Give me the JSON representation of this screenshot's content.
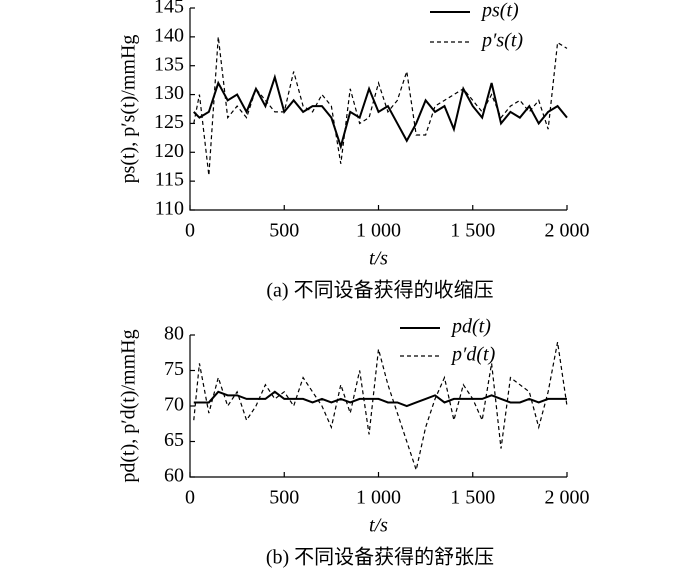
{
  "chart_data": [
    {
      "type": "line",
      "caption": "(a) 不同设备获得的收缩压",
      "xlabel": "t/s",
      "ylabel": "ps(t), p′s(t)/mmHg",
      "x": [
        20,
        50,
        100,
        150,
        200,
        250,
        300,
        350,
        400,
        450,
        500,
        550,
        600,
        650,
        700,
        750,
        800,
        850,
        900,
        950,
        1000,
        1050,
        1100,
        1150,
        1200,
        1250,
        1300,
        1350,
        1400,
        1450,
        1500,
        1550,
        1600,
        1650,
        1700,
        1750,
        1800,
        1850,
        1900,
        1950,
        2000
      ],
      "series": [
        {
          "name": "ps(t)",
          "color": "#000000",
          "style": "solid",
          "values": [
            127,
            126,
            127,
            132,
            129,
            130,
            127,
            131,
            128,
            133,
            127,
            129,
            127,
            128,
            128,
            126,
            121,
            127,
            126,
            131,
            127,
            128,
            125,
            122,
            125,
            129,
            127,
            128,
            124,
            131,
            128,
            126,
            132,
            125,
            127,
            126,
            128,
            125,
            127,
            128,
            126
          ]
        },
        {
          "name": "p′s(t)",
          "color": "#000000",
          "style": "dashed",
          "values": [
            125,
            130,
            116,
            140,
            126,
            128,
            126,
            131,
            129,
            127,
            127,
            134,
            128,
            127,
            130,
            128,
            118,
            131,
            125,
            126,
            132,
            127,
            129,
            134,
            123,
            123,
            128,
            129,
            130,
            131,
            129,
            127,
            130,
            126,
            128,
            129,
            127,
            129,
            124,
            139,
            138
          ]
        }
      ],
      "xlim": [
        0,
        2000
      ],
      "xticks": [
        0,
        500,
        {
          "value": 1000,
          "label": "1 000"
        },
        {
          "value": 1500,
          "label": "1 500"
        },
        {
          "value": 2000,
          "label": "2 000"
        }
      ],
      "ylim": [
        110,
        145
      ],
      "yticks": [
        110,
        115,
        120,
        125,
        130,
        135,
        140,
        145
      ],
      "legend": "upper right"
    },
    {
      "type": "line",
      "caption": "(b) 不同设备获得的舒张压",
      "xlabel": "t/s",
      "ylabel": "pd(t), p′d(t)/mmHg",
      "x": [
        20,
        50,
        100,
        150,
        200,
        250,
        300,
        350,
        400,
        450,
        500,
        550,
        600,
        650,
        700,
        750,
        800,
        850,
        900,
        950,
        1000,
        1050,
        1100,
        1150,
        1200,
        1250,
        1300,
        1350,
        1400,
        1450,
        1500,
        1550,
        1600,
        1650,
        1700,
        1750,
        1800,
        1850,
        1900,
        1950,
        2000
      ],
      "series": [
        {
          "name": "pd(t)",
          "color": "#000000",
          "style": "solid",
          "values": [
            70.5,
            70.5,
            70.5,
            72,
            71.5,
            71.5,
            71,
            71,
            71,
            72,
            71,
            71,
            71,
            70.5,
            71,
            70.5,
            71,
            70.5,
            71,
            71,
            71,
            70.5,
            70.5,
            70,
            70.5,
            71,
            71.5,
            70.5,
            71,
            71,
            71,
            71,
            71.5,
            71,
            70.5,
            70.5,
            71,
            70.5,
            71,
            71,
            71
          ]
        },
        {
          "name": "p′d(t)",
          "color": "#000000",
          "style": "dashed",
          "values": [
            68,
            76,
            69,
            74,
            70,
            72,
            68,
            70,
            73,
            71,
            72,
            70,
            74,
            72,
            70,
            67,
            73,
            69,
            75,
            66,
            78,
            73,
            69,
            65,
            61,
            67,
            71,
            74,
            68,
            73,
            71,
            68,
            76,
            64,
            74,
            73,
            72,
            67,
            72,
            79,
            70
          ]
        }
      ],
      "xlim": [
        0,
        2000
      ],
      "xticks": [
        0,
        500,
        {
          "value": 1000,
          "label": "1 000"
        },
        {
          "value": 1500,
          "label": "1 500"
        },
        {
          "value": 2000,
          "label": "2 000"
        }
      ],
      "ylim": [
        60,
        80
      ],
      "yticks": [
        60,
        65,
        70,
        75,
        80
      ],
      "legend": "upper center"
    }
  ]
}
